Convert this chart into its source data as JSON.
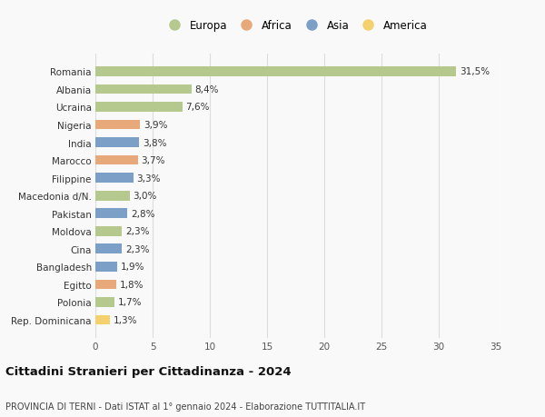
{
  "countries": [
    "Romania",
    "Albania",
    "Ucraina",
    "Nigeria",
    "India",
    "Marocco",
    "Filippine",
    "Macedonia d/N.",
    "Pakistan",
    "Moldova",
    "Cina",
    "Bangladesh",
    "Egitto",
    "Polonia",
    "Rep. Dominicana"
  ],
  "values": [
    31.5,
    8.4,
    7.6,
    3.9,
    3.8,
    3.7,
    3.3,
    3.0,
    2.8,
    2.3,
    2.3,
    1.9,
    1.8,
    1.7,
    1.3
  ],
  "labels": [
    "31,5%",
    "8,4%",
    "7,6%",
    "3,9%",
    "3,8%",
    "3,7%",
    "3,3%",
    "3,0%",
    "2,8%",
    "2,3%",
    "2,3%",
    "1,9%",
    "1,8%",
    "1,7%",
    "1,3%"
  ],
  "regions": [
    "Europa",
    "Europa",
    "Europa",
    "Africa",
    "Asia",
    "Africa",
    "Asia",
    "Europa",
    "Asia",
    "Europa",
    "Asia",
    "Asia",
    "Africa",
    "Europa",
    "America"
  ],
  "colors": {
    "Europa": "#b5c98e",
    "Africa": "#e8a97a",
    "Asia": "#7b9fc7",
    "America": "#f5d06e"
  },
  "legend_order": [
    "Europa",
    "Africa",
    "Asia",
    "America"
  ],
  "xlim": [
    0,
    35
  ],
  "xticks": [
    0,
    5,
    10,
    15,
    20,
    25,
    30,
    35
  ],
  "title": "Cittadini Stranieri per Cittadinanza - 2024",
  "subtitle": "PROVINCIA DI TERNI - Dati ISTAT al 1° gennaio 2024 - Elaborazione TUTTITALIA.IT",
  "background_color": "#f9f9f9",
  "grid_color": "#dddddd",
  "bar_height": 0.55,
  "label_fontsize": 7.5,
  "tick_fontsize": 7.5,
  "title_fontsize": 9.5,
  "subtitle_fontsize": 7.0,
  "legend_fontsize": 8.5
}
